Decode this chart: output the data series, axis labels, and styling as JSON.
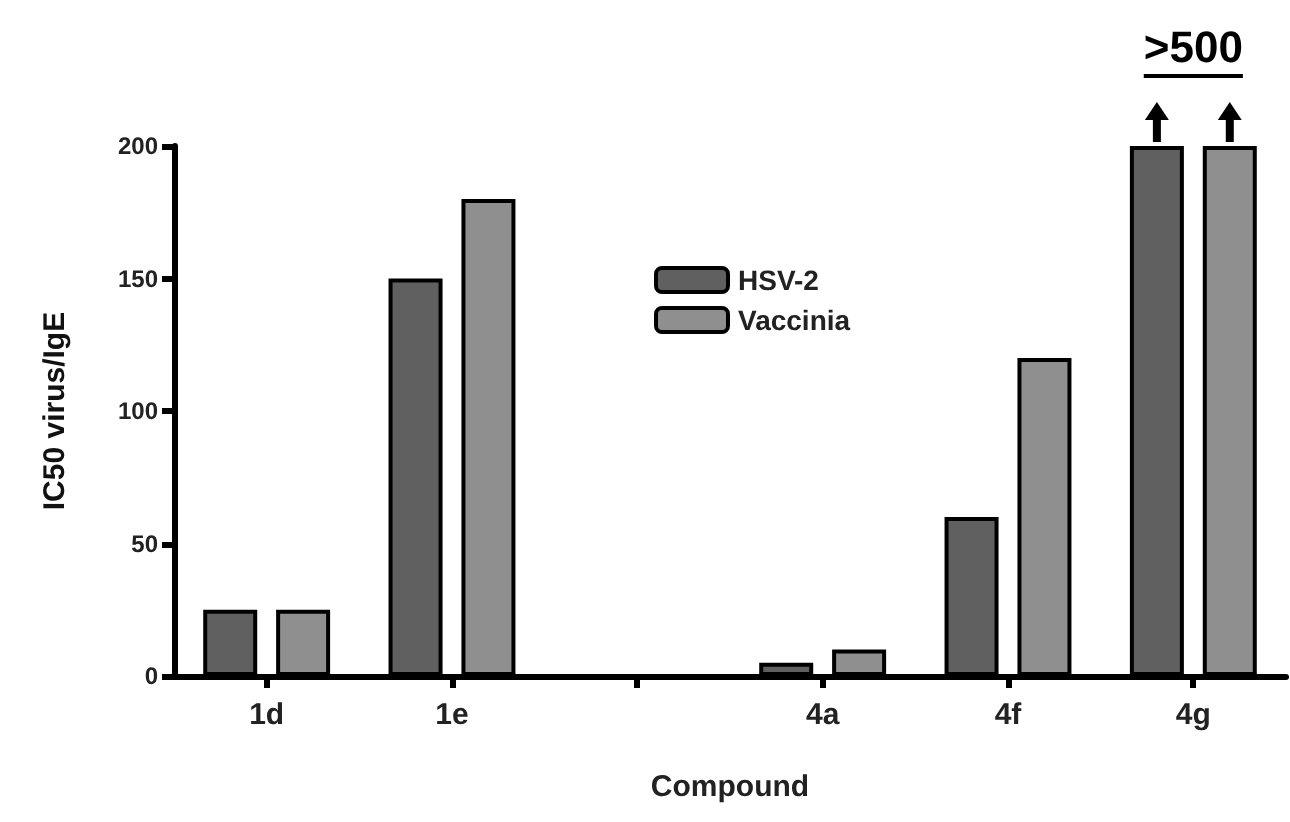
{
  "chart_data": {
    "type": "bar",
    "xlabel": "Compound",
    "ylabel": "IC50 virus/IgE",
    "categories": [
      "1d",
      "1e",
      null,
      "4a",
      "4f",
      "4g"
    ],
    "series": [
      {
        "name": "HSV-2",
        "color": "#606060",
        "values": [
          25,
          150,
          null,
          5,
          60,
          200
        ]
      },
      {
        "name": "Vaccinia",
        "color": "#8f8f8f",
        "values": [
          25,
          180,
          null,
          10,
          120,
          200
        ]
      }
    ],
    "ylim": [
      0,
      200
    ],
    "yticks": [
      0,
      50,
      100,
      150,
      200
    ],
    "grid": false,
    "legend": "top",
    "annotations": [
      ">500"
    ]
  }
}
